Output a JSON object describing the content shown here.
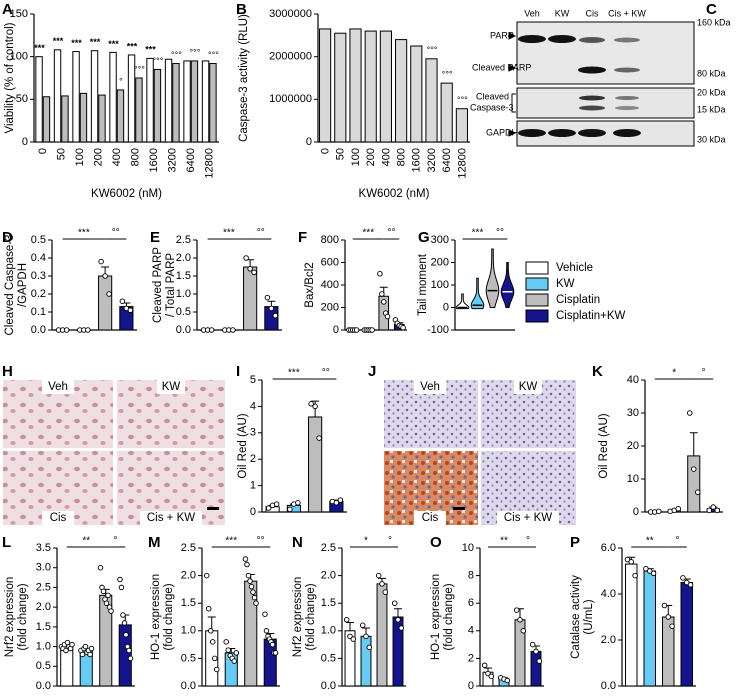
{
  "legend": [
    {
      "name": "Vehicle",
      "color": "#ffffff"
    },
    {
      "name": "KW",
      "color": "#66ccf5"
    },
    {
      "name": "Cisplatin",
      "color": "#bdbdbd"
    },
    {
      "name": "Cisplatin+KW",
      "color": "#14148c"
    }
  ],
  "blot": {
    "panel": "C",
    "lanes": [
      "Veh",
      "KW",
      "Cis",
      "Cis + KW"
    ],
    "bands": [
      "PARP",
      "Cleaved PARP",
      [
        "Cleaved",
        "Caspase-3"
      ],
      "GAPDH"
    ],
    "markers": [
      "160 kDa",
      "80 kDa",
      "20 kDa",
      "15 kDa",
      "30 kDa"
    ]
  },
  "micrographs": [
    {
      "panel": "H",
      "labels": [
        "Veh",
        "KW",
        "Cis",
        "Cis + KW"
      ]
    },
    {
      "panel": "J",
      "labels": [
        "Veh",
        "KW",
        "Cis",
        "Cis + KW"
      ]
    }
  ],
  "chart_data": [
    {
      "type": "bar",
      "panel": "A",
      "ylabel": "Viability (% of control)",
      "xlabel": "KW6002  (nM)",
      "categories": [
        "0",
        "50",
        "100",
        "200",
        "400",
        "800",
        "1600",
        "3200",
        "6400",
        "12800"
      ],
      "series": [
        {
          "color": "#ffffff",
          "values": [
            100,
            108,
            106,
            107,
            105,
            102,
            98,
            97,
            95,
            95
          ]
        },
        {
          "color": "#bdbdbd",
          "values": [
            53,
            54,
            57,
            55,
            61,
            75,
            85,
            92,
            95,
            92
          ]
        }
      ],
      "stars": [
        "***",
        "***",
        "***",
        "***",
        "***",
        "***",
        "***",
        null,
        null,
        null
      ],
      "circles": [
        null,
        null,
        null,
        null,
        "°",
        "°°°",
        "°°°",
        "°°°",
        "°°°",
        "°°°"
      ],
      "ylim": [
        0,
        150
      ],
      "yticks": [
        0,
        50,
        100,
        150
      ]
    },
    {
      "type": "bar",
      "panel": "B",
      "ylabel": "Caspase-3 activity (RLU)",
      "xlabel": "KW6002  (nM)",
      "categories": [
        "0",
        "50",
        "100",
        "200",
        "400",
        "800",
        "1600",
        "3200",
        "6400",
        "12800"
      ],
      "series": [
        {
          "color": "#d9d9d9",
          "values": [
            2650000,
            2550000,
            2650000,
            2600000,
            2600000,
            2400000,
            2250000,
            1950000,
            1380000,
            780000
          ]
        }
      ],
      "circles": [
        null,
        null,
        null,
        null,
        null,
        null,
        null,
        "°°°",
        "°°°",
        "°°°"
      ],
      "ylim": [
        0,
        3000000
      ],
      "yticks": [
        0,
        1000000,
        2000000,
        3000000
      ]
    },
    {
      "type": "bar",
      "panel": "D",
      "ylabel": [
        "Cleaved Caspase-3",
        "/GAPDH"
      ],
      "values": [
        0,
        0,
        0.3,
        0.13
      ],
      "errors": [
        0,
        0,
        0.05,
        0.02
      ],
      "points": [
        [
          0,
          0,
          0
        ],
        [
          0,
          0,
          0
        ],
        [
          0.38,
          0.3,
          0.2
        ],
        [
          0.16,
          0.12,
          0.11
        ]
      ],
      "sig": [
        "***",
        "°°"
      ],
      "ylim": [
        0,
        0.5
      ],
      "yticks": [
        {
          "value": 0,
          "label": "0.0"
        },
        0.1,
        0.2,
        0.3,
        0.4,
        0.5
      ]
    },
    {
      "type": "bar",
      "panel": "E",
      "ylabel": [
        "Cleaved PARP",
        "/ Total PARP"
      ],
      "values": [
        0,
        0,
        1.75,
        0.65
      ],
      "errors": [
        0,
        0,
        0.2,
        0.15
      ],
      "points": [
        [
          0,
          0,
          0
        ],
        [
          0,
          0,
          0
        ],
        [
          2.0,
          1.7,
          1.6
        ],
        [
          0.9,
          0.6,
          0.4
        ]
      ],
      "sig": [
        "***",
        "°°"
      ],
      "ylim": [
        0,
        2.5
      ],
      "yticks": [
        {
          "value": 0,
          "label": "0.0"
        },
        0.5,
        {
          "value": 1,
          "label": "1.0"
        },
        1.5,
        {
          "value": 2,
          "label": "2.0"
        },
        2.5
      ]
    },
    {
      "type": "bar",
      "panel": "F",
      "ylabel": "Bax/Bcl2",
      "values": [
        5,
        5,
        300,
        50
      ],
      "errors": [
        0,
        0,
        80,
        15
      ],
      "points": [
        [
          0,
          0,
          0,
          0,
          0
        ],
        [
          0,
          0,
          0,
          0,
          0
        ],
        [
          500,
          320,
          250,
          150,
          120
        ],
        [
          90,
          60,
          40,
          30,
          20
        ]
      ],
      "sig": [
        "***",
        "°°"
      ],
      "ylim": [
        0,
        800
      ],
      "yticks": [
        0,
        200,
        400,
        600,
        800
      ]
    },
    {
      "type": "violin",
      "panel": "G",
      "ylabel": "Tail moment",
      "median": [
        0,
        10,
        75,
        70
      ],
      "min": [
        -5,
        -5,
        0,
        0
      ],
      "max": [
        60,
        130,
        260,
        200
      ],
      "sig": [
        "***",
        "°°"
      ],
      "ylim": [
        -100,
        300
      ],
      "yticks": [
        -100,
        0,
        100,
        200,
        300
      ]
    },
    {
      "type": "bar",
      "panel": "I",
      "ylabel": "Oil Red (AU)",
      "values": [
        0.2,
        0.25,
        3.6,
        0.4
      ],
      "errors": [
        0.05,
        0.05,
        0.6,
        0.05
      ],
      "points": [
        [
          0.15,
          0.25,
          0.3
        ],
        [
          0.1,
          0.3,
          0.35
        ],
        [
          4.1,
          4.0,
          2.8
        ],
        [
          0.4,
          0.35,
          0.45
        ]
      ],
      "sig": [
        "***",
        "°°"
      ],
      "ylim": [
        0,
        5
      ],
      "yticks": [
        0,
        1,
        2,
        3,
        4,
        5
      ]
    },
    {
      "type": "bar",
      "panel": "K",
      "ylabel": "Oil Red (AU)",
      "values": [
        0.2,
        0.5,
        17,
        1
      ],
      "errors": [
        0,
        0.2,
        7,
        0.5
      ],
      "points": [
        [
          0,
          0,
          0.2
        ],
        [
          0.2,
          0.5,
          1
        ],
        [
          30,
          13,
          6
        ],
        [
          0.5,
          1.5,
          0.5
        ]
      ],
      "sig": [
        "*",
        "°"
      ],
      "ylim": [
        0,
        40
      ],
      "yticks": [
        0,
        10,
        20,
        30,
        40
      ]
    },
    {
      "type": "bar",
      "panel": "L",
      "ylabel": [
        "Nrf2 expression",
        "(fold change)"
      ],
      "values": [
        1.0,
        0.9,
        2.3,
        1.55
      ],
      "errors": [
        0.05,
        0.05,
        0.15,
        0.25
      ],
      "points": [
        [
          1.0,
          0.95,
          1.05,
          0.9,
          1.1,
          1.0,
          0.95,
          1.05
        ],
        [
          0.9,
          0.8,
          0.95,
          1.0,
          0.85,
          0.9,
          0.8,
          0.95
        ],
        [
          3.0,
          2.5,
          2.4,
          2.2,
          2.1,
          2.3,
          2.0,
          1.9
        ],
        [
          2.7,
          2.5,
          1.8,
          1.6,
          1.3,
          1.0,
          0.9,
          0.7
        ]
      ],
      "sig": [
        "**",
        "°"
      ],
      "ylim": [
        0,
        3.5
      ],
      "yticks": [
        {
          "value": 0,
          "label": "0.0"
        },
        0.5,
        {
          "value": 1,
          "label": "1.0"
        },
        1.5,
        {
          "value": 2,
          "label": "2.0"
        },
        2.5,
        {
          "value": 3,
          "label": "3.0"
        },
        3.5
      ]
    },
    {
      "type": "bar",
      "panel": "M",
      "ylabel": [
        "HO-1 expression",
        "(fold change)"
      ],
      "values": [
        1.0,
        0.6,
        1.9,
        0.85
      ],
      "errors": [
        0.25,
        0.08,
        0.12,
        0.1
      ],
      "points": [
        [
          2.0,
          1.4,
          1.0,
          0.8,
          0.5,
          0.3
        ],
        [
          0.8,
          0.65,
          0.55,
          0.5,
          0.45,
          0.6
        ],
        [
          2.3,
          2.2,
          2.0,
          1.9,
          1.8,
          1.7,
          1.6,
          1.5
        ],
        [
          1.3,
          1.0,
          0.9,
          0.85,
          0.8,
          0.75,
          0.6,
          0.6
        ]
      ],
      "sig": [
        "***",
        "°°"
      ],
      "ylim": [
        0,
        2.5
      ],
      "yticks": [
        {
          "value": 0,
          "label": "0.0"
        },
        0.5,
        {
          "value": 1,
          "label": "1.0"
        },
        1.5,
        {
          "value": 2,
          "label": "2.0"
        },
        2.5
      ]
    },
    {
      "type": "bar",
      "panel": "N",
      "ylabel": [
        "Nrf2 expression",
        "(fold change)"
      ],
      "values": [
        1.0,
        0.9,
        1.85,
        1.25
      ],
      "errors": [
        0.15,
        0.15,
        0.1,
        0.15
      ],
      "points": [
        [
          1.2,
          0.9,
          0.85
        ],
        [
          1.1,
          0.9,
          0.7
        ],
        [
          2.0,
          1.85,
          1.7
        ],
        [
          1.5,
          1.2,
          1.05
        ]
      ],
      "sig": [
        "*",
        "°"
      ],
      "ylim": [
        0,
        2.5
      ],
      "yticks": [
        {
          "value": 0,
          "label": "0.0"
        },
        0.5,
        {
          "value": 1,
          "label": "1.0"
        },
        1.5,
        {
          "value": 2,
          "label": "2.0"
        },
        2.5
      ]
    },
    {
      "type": "bar",
      "panel": "O",
      "ylabel": [
        "HO-1 expression",
        "(fold change)"
      ],
      "values": [
        1.0,
        0.5,
        4.8,
        2.5
      ],
      "errors": [
        0.3,
        0.1,
        0.8,
        0.4
      ],
      "points": [
        [
          1.5,
          0.9,
          0.7
        ],
        [
          0.6,
          0.5,
          0.4
        ],
        [
          5.5,
          4.8,
          4.0
        ],
        [
          3.0,
          2.5,
          1.8
        ]
      ],
      "sig": [
        "**",
        "°"
      ],
      "ylim": [
        0,
        10
      ],
      "yticks": [
        0,
        2,
        4,
        6,
        8,
        10
      ]
    },
    {
      "type": "bar",
      "panel": "P",
      "ylabel": [
        "Catalase activity",
        "(U/mL)"
      ],
      "values": [
        5.3,
        5.0,
        3.0,
        4.5
      ],
      "errors": [
        0.3,
        0.1,
        0.5,
        0.15
      ],
      "points": [
        [
          5.5,
          5.4,
          4.8
        ],
        [
          5.1,
          5.0,
          4.9
        ],
        [
          3.5,
          3.0,
          2.6
        ],
        [
          4.7,
          4.5,
          4.4
        ]
      ],
      "sig": [
        "**",
        "°"
      ],
      "ylim": [
        0,
        6
      ],
      "yticks": [
        {
          "value": 0,
          "label": "0.0"
        },
        {
          "value": 2,
          "label": "2.0"
        },
        {
          "value": 4,
          "label": "4.0"
        },
        {
          "value": 6,
          "label": "6.0"
        }
      ]
    }
  ]
}
